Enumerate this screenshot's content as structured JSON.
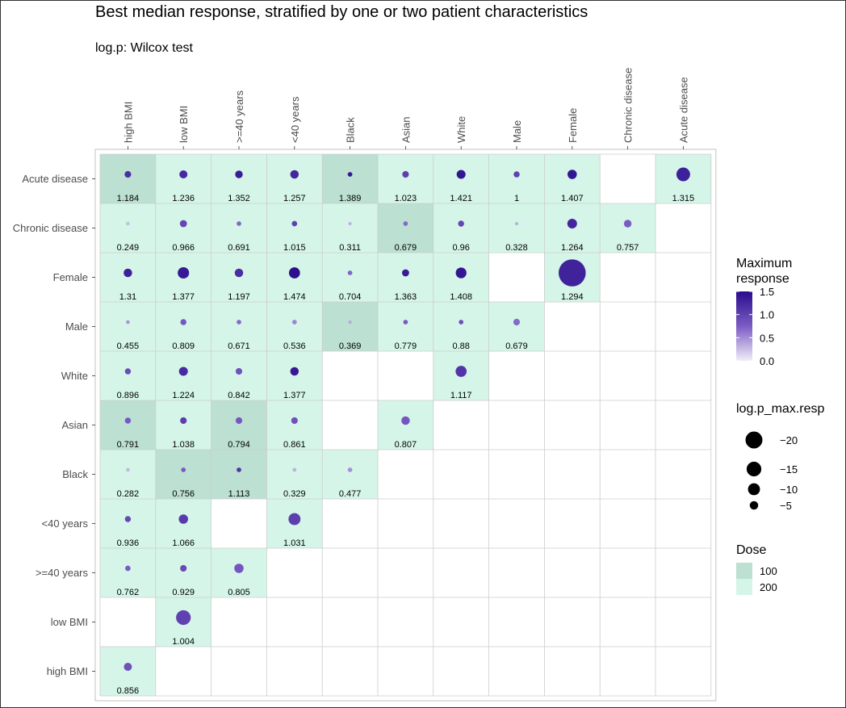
{
  "title": "Best median response, stratified by one or two patient characteristics",
  "subtitle": "log.p: Wilcox test",
  "chart_data": {
    "type": "heatmap",
    "x_categories": [
      "high BMI",
      "low BMI",
      ">=40 years",
      "<40 years",
      "Black",
      "Asian",
      "White",
      "Male",
      "Female",
      "Chronic disease",
      "Acute disease"
    ],
    "y_categories": [
      "Acute disease",
      "Chronic disease",
      "Female",
      "Male",
      "White",
      "Asian",
      "Black",
      "<40 years",
      ">=40 years",
      "low BMI",
      "high BMI"
    ],
    "cell_fields": [
      "x",
      "y",
      "max_resp",
      "log_p",
      "dose"
    ],
    "cells": [
      [
        "high BMI",
        "Acute disease",
        1.184,
        -3,
        100
      ],
      [
        "low BMI",
        "Acute disease",
        1.236,
        -4.5,
        200
      ],
      [
        ">=40 years",
        "Acute disease",
        1.352,
        -4,
        200
      ],
      [
        "<40 years",
        "Acute disease",
        1.257,
        -5,
        200
      ],
      [
        "Black",
        "Acute disease",
        1.389,
        -1.5,
        100
      ],
      [
        "Asian",
        "Acute disease",
        1.023,
        -3,
        200
      ],
      [
        "White",
        "Acute disease",
        1.421,
        -5.5,
        200
      ],
      [
        "Male",
        "Acute disease",
        1,
        -2.5,
        200
      ],
      [
        "Female",
        "Acute disease",
        1.407,
        -6,
        200
      ],
      [
        "Acute disease",
        "Acute disease",
        1.315,
        -13,
        200
      ],
      [
        "high BMI",
        "Chronic disease",
        0.249,
        -1,
        200
      ],
      [
        "low BMI",
        "Chronic disease",
        0.966,
        -3.5,
        200
      ],
      [
        ">=40 years",
        "Chronic disease",
        0.691,
        -1.5,
        200
      ],
      [
        "<40 years",
        "Chronic disease",
        1.015,
        -2,
        200
      ],
      [
        "Black",
        "Chronic disease",
        0.311,
        -0.8,
        200
      ],
      [
        "Asian",
        "Chronic disease",
        0.679,
        -1.5,
        100
      ],
      [
        "White",
        "Chronic disease",
        0.96,
        -2.5,
        200
      ],
      [
        "Male",
        "Chronic disease",
        0.328,
        -0.8,
        200
      ],
      [
        "Female",
        "Chronic disease",
        1.264,
        -6.5,
        200
      ],
      [
        "Chronic disease",
        "Chronic disease",
        0.757,
        -4,
        200
      ],
      [
        "high BMI",
        "Female",
        1.31,
        -5,
        200
      ],
      [
        "low BMI",
        "Female",
        1.377,
        -9,
        200
      ],
      [
        ">=40 years",
        "Female",
        1.197,
        -5,
        200
      ],
      [
        "<40 years",
        "Female",
        1.474,
        -8.5,
        200
      ],
      [
        "Black",
        "Female",
        0.704,
        -1.5,
        200
      ],
      [
        "Asian",
        "Female",
        1.363,
        -3.5,
        200
      ],
      [
        "White",
        "Female",
        1.408,
        -8,
        200
      ],
      [
        "Female",
        "Female",
        1.294,
        -51,
        200
      ],
      [
        "high BMI",
        "Male",
        0.455,
        -1,
        200
      ],
      [
        "low BMI",
        "Male",
        0.809,
        -2.5,
        200
      ],
      [
        ">=40 years",
        "Male",
        0.671,
        -1.5,
        200
      ],
      [
        "<40 years",
        "Male",
        0.536,
        -1.5,
        200
      ],
      [
        "Black",
        "Male",
        0.369,
        -0.8,
        100
      ],
      [
        "Asian",
        "Male",
        0.779,
        -1.5,
        200
      ],
      [
        "White",
        "Male",
        0.88,
        -1.5,
        200
      ],
      [
        "Male",
        "Male",
        0.679,
        -3,
        200
      ],
      [
        "high BMI",
        "White",
        0.896,
        -2.5,
        200
      ],
      [
        "low BMI",
        "White",
        1.224,
        -5.5,
        200
      ],
      [
        ">=40 years",
        "White",
        0.842,
        -3,
        200
      ],
      [
        "<40 years",
        "White",
        1.377,
        -5,
        200
      ],
      [
        "White",
        "White",
        1.117,
        -8.5,
        200
      ],
      [
        "high BMI",
        "Asian",
        0.791,
        -2.5,
        100
      ],
      [
        "low BMI",
        "Asian",
        1.038,
        -3,
        200
      ],
      [
        ">=40 years",
        "Asian",
        0.794,
        -3,
        100
      ],
      [
        "<40 years",
        "Asian",
        0.861,
        -3,
        200
      ],
      [
        "Asian",
        "Asian",
        0.807,
        -5,
        200
      ],
      [
        "high BMI",
        "Black",
        0.282,
        -1,
        200
      ],
      [
        "low BMI",
        "Black",
        0.756,
        -1.5,
        100
      ],
      [
        ">=40 years",
        "Black",
        1.113,
        -1.5,
        100
      ],
      [
        "<40 years",
        "Black",
        0.329,
        -1,
        200
      ],
      [
        "Black",
        "Black",
        0.477,
        -1.5,
        200
      ],
      [
        "high BMI",
        "<40 years",
        0.936,
        -2.5,
        200
      ],
      [
        "low BMI",
        "<40 years",
        1.066,
        -6,
        200
      ],
      [
        "<40 years",
        "<40 years",
        1.031,
        -10,
        200
      ],
      [
        "high BMI",
        ">=40 years",
        0.762,
        -2,
        200
      ],
      [
        "low BMI",
        ">=40 years",
        0.929,
        -3,
        200
      ],
      [
        ">=40 years",
        ">=40 years",
        0.805,
        -6,
        200
      ],
      [
        "low BMI",
        "low BMI",
        1.004,
        -15,
        200
      ],
      [
        "high BMI",
        "high BMI",
        0.856,
        -4.5,
        200
      ]
    ],
    "fill_legend": {
      "title_lines": [
        "Maximum",
        "response"
      ],
      "ticks": [
        "1.5",
        "1.0",
        "0.5",
        "0.0"
      ],
      "range": [
        0,
        1.5
      ]
    },
    "size_legend": {
      "title": "log.p_max.resp",
      "entries": [
        {
          "label": "−20",
          "value": -20
        },
        {
          "label": "−15",
          "value": -15
        },
        {
          "label": "−10",
          "value": -10
        },
        {
          "label": "−5",
          "value": -5
        }
      ]
    },
    "dose_legend": {
      "title": "Dose",
      "entries": [
        {
          "label": "100",
          "color": "#bce0d2"
        },
        {
          "label": "200",
          "color": "#d5f5e9"
        }
      ]
    },
    "colors": {
      "dose_100": "#bce0d2",
      "dose_200": "#d5f5e9",
      "low": "#f2eef8",
      "mid": "#7b5cc4",
      "high": "#2a0c8c",
      "grid": "#cccccc"
    }
  }
}
